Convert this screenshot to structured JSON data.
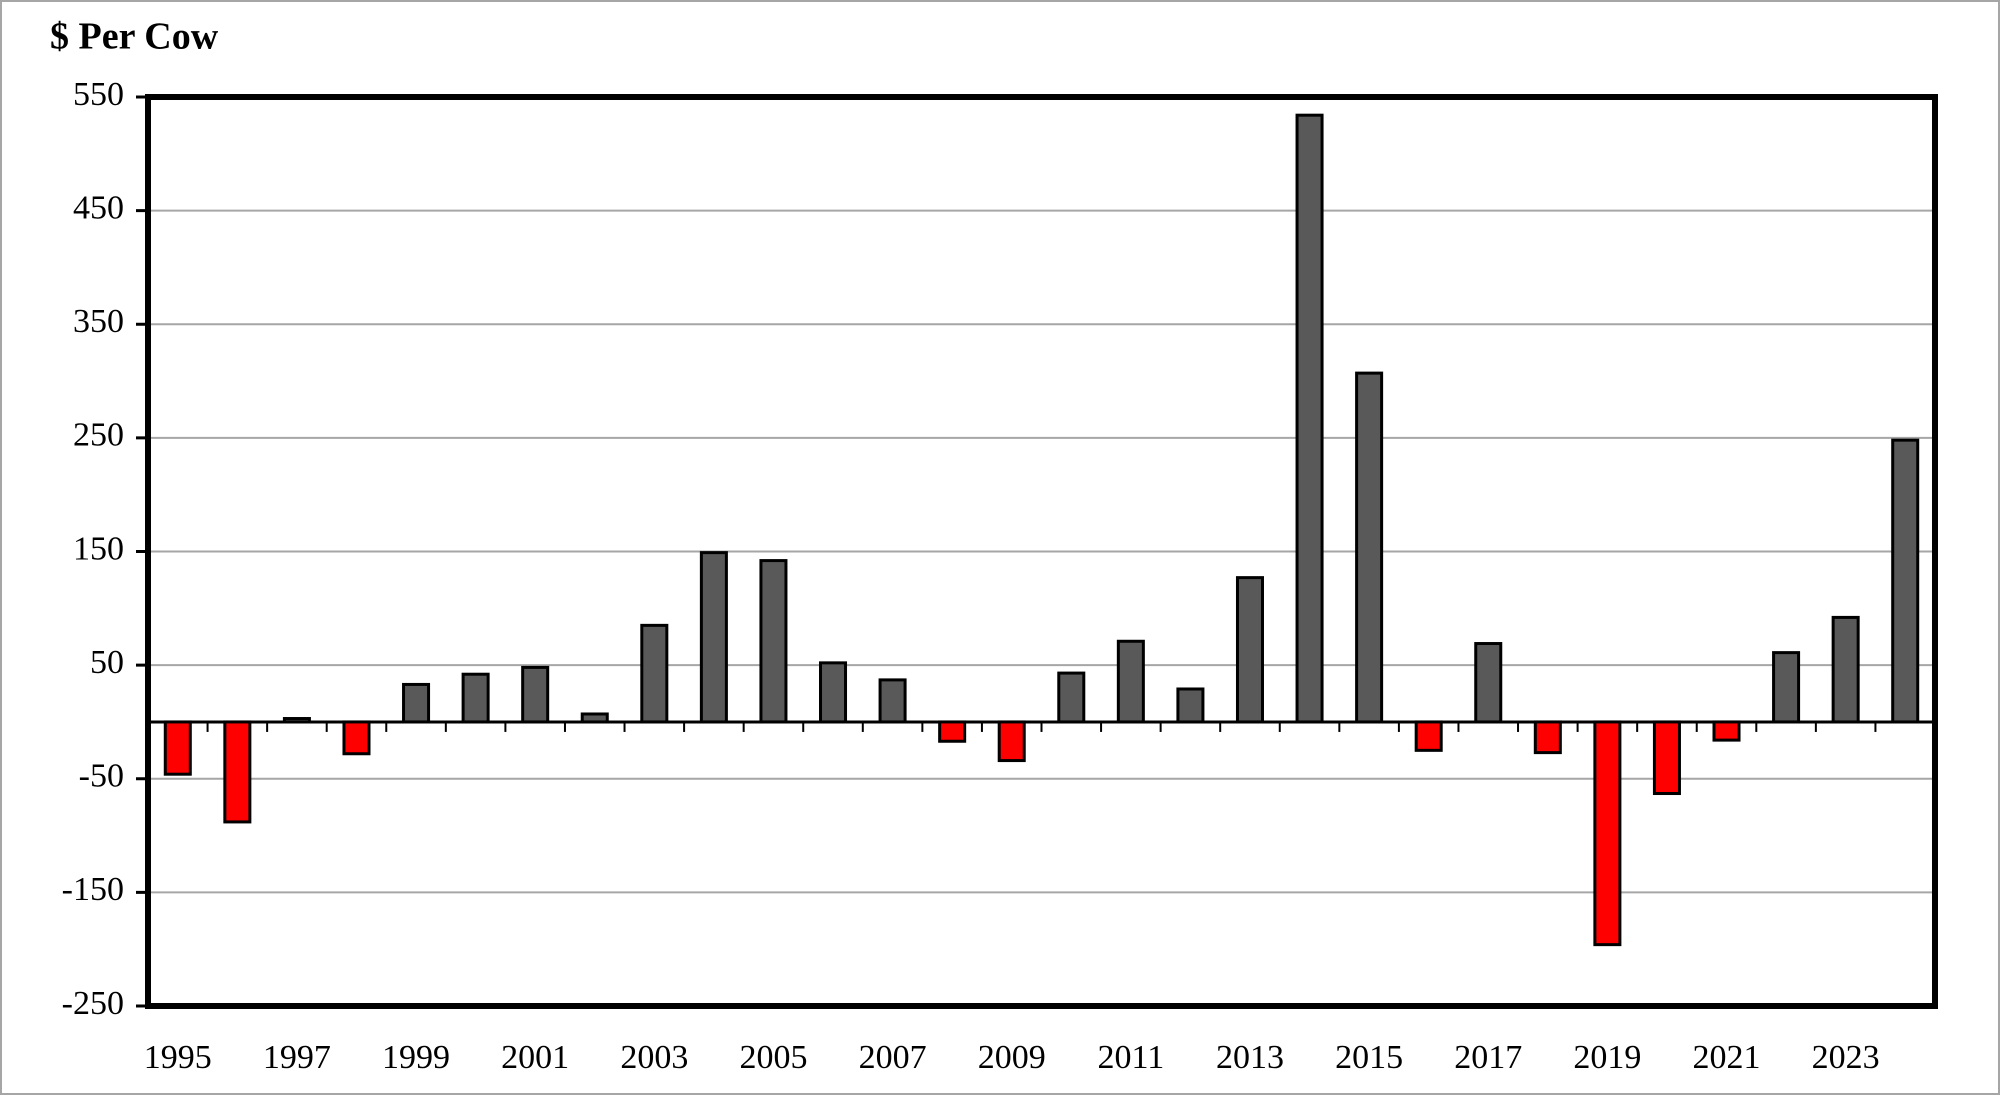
{
  "chart_data": {
    "type": "bar",
    "title": "$ Per Cow",
    "categories": [
      "1995",
      null,
      "1997",
      null,
      "1999",
      null,
      "2001",
      null,
      "2003",
      null,
      "2005",
      null,
      "2007",
      null,
      "2009",
      null,
      "2011",
      null,
      "2013",
      null,
      "2015",
      null,
      "2017",
      null,
      "2019",
      null,
      "2021",
      null,
      "2023",
      null
    ],
    "values": [
      -46,
      -88,
      3,
      -28,
      33,
      42,
      48,
      7,
      85,
      149,
      142,
      52,
      37,
      -17,
      -34,
      43,
      71,
      29,
      127,
      534,
      307,
      -25,
      69,
      -27,
      -196,
      -63,
      -16,
      61,
      92,
      248
    ],
    "color": "#595959",
    "negative_color": "#ff0000",
    "ylim": [
      -250,
      550
    ],
    "yticks": [
      -250,
      -150,
      -50,
      50,
      150,
      250,
      350,
      450,
      550
    ],
    "grid": true
  }
}
